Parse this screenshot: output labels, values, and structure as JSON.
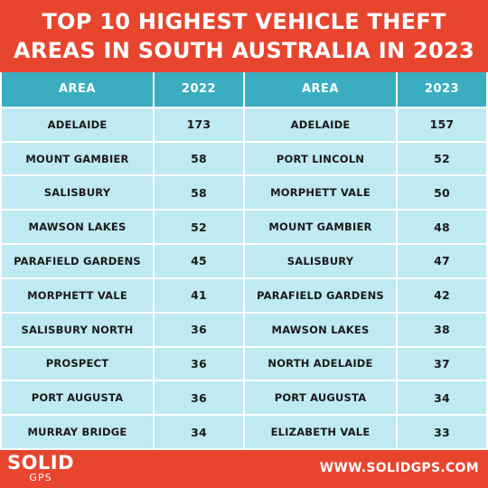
{
  "title_lines": [
    "TOP 10 HIGHEST VEHICLE THEFT",
    "AREAS IN SOUTH AUSTRALIA IN 2023"
  ],
  "footer": {
    "logo_text": "SOLID",
    "logo_subtext": "GPS",
    "website": "WWW.SOLIDGPS.COM"
  },
  "colors": {
    "header_bg": "#e8452f",
    "table_header_bg": "#3aaec0",
    "table_cell_bg": "#bfeaf2"
  },
  "chart_data": [
    {
      "type": "table",
      "columns": [
        "AREA",
        "2022"
      ],
      "rows": [
        [
          "ADELAIDE",
          "173"
        ],
        [
          "MOUNT GAMBIER",
          "58"
        ],
        [
          "SALISBURY",
          "58"
        ],
        [
          "MAWSON LAKES",
          "52"
        ],
        [
          "PARAFIELD GARDENS",
          "45"
        ],
        [
          "MORPHETT VALE",
          "41"
        ],
        [
          "SALISBURY NORTH",
          "36"
        ],
        [
          "PROSPECT",
          "36"
        ],
        [
          "PORT AUGUSTA",
          "36"
        ],
        [
          "MURRAY BRIDGE",
          "34"
        ]
      ]
    },
    {
      "type": "table",
      "columns": [
        "AREA",
        "2023"
      ],
      "rows": [
        [
          "ADELAIDE",
          "157"
        ],
        [
          "PORT LINCOLN",
          "52"
        ],
        [
          "MORPHETT VALE",
          "50"
        ],
        [
          "MOUNT GAMBIER",
          "48"
        ],
        [
          "SALISBURY",
          "47"
        ],
        [
          "PARAFIELD GARDENS",
          "42"
        ],
        [
          "MAWSON LAKES",
          "38"
        ],
        [
          "NORTH ADELAIDE",
          "37"
        ],
        [
          "PORT AUGUSTA",
          "34"
        ],
        [
          "ELIZABETH VALE",
          "33"
        ]
      ]
    }
  ]
}
